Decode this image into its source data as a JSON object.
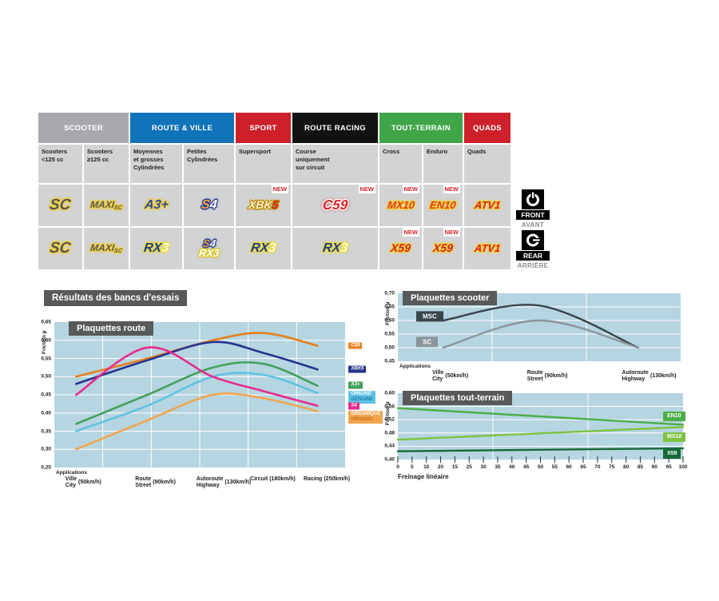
{
  "results_title": "Résultats des bancs d'essais",
  "position_labels": {
    "front": {
      "en": "FRONT",
      "fr": "AVANT"
    },
    "rear": {
      "en": "REAR",
      "fr": "ARRIÈRE"
    }
  },
  "table": {
    "new_badge": "NEW",
    "groups": [
      {
        "label": "SCOOTER",
        "span": 2,
        "color": "#A7A9AC"
      },
      {
        "label": "ROUTE & VILLE",
        "span": 2,
        "color": "#1173B9"
      },
      {
        "label": "SPORT",
        "span": 1,
        "color": "#CE202B"
      },
      {
        "label": "ROUTE RACING",
        "span": 1,
        "color": "#121212"
      },
      {
        "label": "TOUT-TERRAIN",
        "span": 2,
        "color": "#3FA548"
      },
      {
        "label": "QUADS",
        "span": 1,
        "color": "#CE202B"
      }
    ],
    "subheaders": [
      "Scooters\n<125 cc",
      "Scooters\n≥125 cc",
      "Moyennes\net grosses\nCylindrées",
      "Petites\nCylindrées",
      "Supersport",
      "Course\nuniquement\nsur circuit",
      "Cross",
      "Enduro",
      "Quads"
    ],
    "products": {
      "SC": {
        "size": 19,
        "outline": "#F0D03C",
        "glow": "rgba(240,208,60,0.9)",
        "parts": [
          {
            "t": "SC",
            "c": "#55565A"
          }
        ]
      },
      "MAXISC": {
        "size": 12,
        "outline": "#F0D03C",
        "glow": "rgba(240,208,60,0.9)",
        "parts": [
          {
            "t": "MAXI",
            "c": "#55565A"
          },
          {
            "t": "SC",
            "c": "#55565A",
            "small": true
          }
        ]
      },
      "A3PLUS": {
        "size": 16,
        "outline": "#F0D03C",
        "glow": "rgba(240,208,60,0.9)",
        "parts": [
          {
            "t": "A3+",
            "c": "#2E4D9C"
          }
        ]
      },
      "S4": {
        "size": 16,
        "outline": "#2B3990",
        "glow": "rgba(120,140,200,0.6)",
        "parts": [
          {
            "t": "S",
            "c": "#F2A933"
          },
          {
            "t": "4",
            "c": "#FFFFFF"
          }
        ]
      },
      "S4S": {
        "size": 13,
        "outline": "#2B3990",
        "glow": "rgba(120,140,200,0.6)",
        "parts": [
          {
            "t": "S",
            "c": "#F2A933"
          },
          {
            "t": "4",
            "c": "#FFFFFF"
          }
        ]
      },
      "XBK5": {
        "size": 14,
        "outline": "#B8860B",
        "glow": "rgba(244,214,84,0.9)",
        "parts": [
          {
            "t": "XBK",
            "c": "#FCF3CF"
          },
          {
            "t": "5",
            "c": "#D81F26"
          }
        ]
      },
      "C59": {
        "size": 17,
        "outline": "#FFFFFF",
        "glow": "rgba(216,31,38,0.85)",
        "parts": [
          {
            "t": "C59",
            "c": "#D81F26"
          }
        ]
      },
      "MX10": {
        "size": 13,
        "outline": "#F0D03C",
        "glow": "rgba(240,208,60,0.8)",
        "parts": [
          {
            "t": "MX10",
            "c": "#E03A25"
          }
        ]
      },
      "EN10": {
        "size": 13,
        "outline": "#F0D03C",
        "glow": "rgba(240,208,60,0.8)",
        "parts": [
          {
            "t": "EN10",
            "c": "#E03A25"
          }
        ]
      },
      "ATV1": {
        "size": 13,
        "outline": "#F0D03C",
        "glow": "rgba(240,208,60,0.8)",
        "parts": [
          {
            "t": "ATV1",
            "c": "#D81F26"
          }
        ]
      },
      "RX3": {
        "size": 16,
        "outline": "#E8DC3E",
        "glow": "rgba(232,220,62,0.8)",
        "parts": [
          {
            "t": "RX",
            "c": "#1E3C8C"
          },
          {
            "t": "3",
            "c": "#FDFBE8"
          }
        ]
      },
      "RX3W": {
        "size": 13,
        "outline": "#D9CB30",
        "glow": "rgba(217,203,48,0.8)",
        "parts": [
          {
            "t": "RX3",
            "c": "#FFFFFF"
          }
        ]
      },
      "X59": {
        "size": 14,
        "outline": "#F0D03C",
        "glow": "rgba(240,208,60,0.8)",
        "parts": [
          {
            "t": "X59",
            "c": "#D81F26"
          }
        ]
      }
    },
    "rows": {
      "front": [
        {
          "logos": [
            "SC"
          ]
        },
        {
          "logos": [
            "MAXISC"
          ]
        },
        {
          "logos": [
            "A3PLUS"
          ]
        },
        {
          "logos": [
            "S4"
          ]
        },
        {
          "logos": [
            "XBK5"
          ],
          "new": true
        },
        {
          "logos": [
            "C59"
          ],
          "new": true
        },
        {
          "logos": [
            "MX10"
          ],
          "new": true
        },
        {
          "logos": [
            "EN10"
          ],
          "new": true
        },
        {
          "logos": [
            "ATV1"
          ]
        }
      ],
      "rear": [
        {
          "logos": [
            "SC"
          ]
        },
        {
          "logos": [
            "MAXISC"
          ]
        },
        {
          "logos": [
            "RX3"
          ]
        },
        {
          "logos": [
            "S4S",
            "RX3W"
          ]
        },
        {
          "logos": [
            "RX3"
          ]
        },
        {
          "logos": [
            "RX3"
          ]
        },
        {
          "logos": [
            "X59"
          ],
          "new": true
        },
        {
          "logos": [
            "X59"
          ],
          "new": true
        },
        {
          "logos": [
            "ATV1"
          ]
        }
      ]
    }
  },
  "chart_data": [
    {
      "id": "route",
      "type": "line",
      "title": "Plaquettes route",
      "ylabel": "Friction µ",
      "plot_bg": "#B5D5E0",
      "ylim": [
        0.25,
        0.65
      ],
      "yticks": [
        "0,65",
        "0,60",
        "0,55",
        "0,50",
        "0,45",
        "0,40",
        "0,35",
        "0,30",
        "0,25"
      ],
      "x_caption": "Applications",
      "xf": [
        0.075,
        0.32,
        0.545,
        0.72,
        0.905
      ],
      "stops": [
        {
          "fr": "Ville",
          "en": "City",
          "speed": "(50km/h)",
          "xf": 0.075
        },
        {
          "fr": "Route",
          "en": "Street",
          "speed": "(90km/h)",
          "xf": 0.32
        },
        {
          "fr": "Autoroute",
          "en": "Highway",
          "speed": "(130km/h)",
          "xf": 0.545
        },
        {
          "fr": "Circuit",
          "en": "",
          "speed": "(180km/h)",
          "xf": 0.72
        },
        {
          "fr": "Racing",
          "en": "",
          "speed": "(250km/h)",
          "xf": 0.905
        }
      ],
      "series": [
        {
          "name": "C59",
          "color": "#E5801F",
          "values": [
            0.5,
            0.55,
            0.6,
            0.62,
            0.585
          ],
          "legend": {
            "xf": 1.012,
            "v": 0.585
          }
        },
        {
          "name": "XBK5",
          "color": "#26338F",
          "values": [
            0.48,
            0.545,
            0.595,
            0.565,
            0.52
          ],
          "legend": {
            "xf": 1.012,
            "v": 0.52
          }
        },
        {
          "name": "A3+",
          "color": "#43A05B",
          "values": [
            0.37,
            0.45,
            0.525,
            0.535,
            0.475
          ],
          "legend": {
            "xf": 1.012,
            "v": 0.477
          }
        },
        {
          "name": "ORIGINE|GENUINE",
          "color": "#5FC2E3",
          "line2_color": "#1A7FAE",
          "values": [
            0.35,
            0.42,
            0.5,
            0.505,
            0.455
          ],
          "legend": {
            "xf": 1.012,
            "v": 0.444
          }
        },
        {
          "name": "S4",
          "color": "#E92A8E",
          "values": [
            0.45,
            0.58,
            0.5,
            0.46,
            0.42
          ],
          "legend": {
            "xf": 1.012,
            "v": 0.419
          }
        },
        {
          "name": "ORGANIQUE|ORGANIC",
          "color": "#F2A44E",
          "line2_color": "#C4731B",
          "values": [
            0.3,
            0.38,
            0.45,
            0.44,
            0.405
          ],
          "legend": {
            "xf": 1.012,
            "v": 0.388
          }
        }
      ]
    },
    {
      "id": "scooter",
      "type": "line",
      "title": "Plaquettes scooter",
      "ylabel": "Friction µ",
      "plot_bg": "#B5D5E0",
      "ylim": [
        0.45,
        0.7
      ],
      "yticks": [
        "0,70",
        "0,65",
        "0,60",
        "0,55",
        "0,50",
        "0,45"
      ],
      "x_caption": "Applications",
      "xf": [
        0.16,
        0.5,
        0.85
      ],
      "stops": [
        {
          "fr": "Ville",
          "en": "City",
          "speed": "(50km/h)",
          "xf": 0.16
        },
        {
          "fr": "Route",
          "en": "Street",
          "speed": "(90km/h)",
          "xf": 0.5
        },
        {
          "fr": "Autoroute",
          "en": "Highway",
          "speed": "(130km/h)",
          "xf": 0.85
        }
      ],
      "series": [
        {
          "name": "MSC",
          "color": "#39444C",
          "values": [
            0.6,
            0.655,
            0.5
          ],
          "legend": {
            "xf": 0.065,
            "v": 0.615
          }
        },
        {
          "name": "SC",
          "color": "#8A959C",
          "values": [
            0.5,
            0.6,
            0.5
          ],
          "legend": {
            "xf": 0.065,
            "v": 0.52
          }
        }
      ]
    },
    {
      "id": "offroad",
      "type": "line",
      "title": "Plaquettes tout-terrain",
      "ylabel": "Friction µ",
      "plot_bg": "#B5D5E0",
      "ylim": [
        0.4,
        0.6
      ],
      "yticks": [
        "0,60",
        "0,56",
        "0,52",
        "0,48",
        "0,44",
        "0,40"
      ],
      "xticks": [
        "0",
        "5",
        "10",
        "20",
        "15",
        "25",
        "30",
        "35",
        "40",
        "45",
        "50",
        "55",
        "60",
        "65",
        "70",
        "75",
        "80",
        "85",
        "90",
        "95",
        "100"
      ],
      "xlabel": "Freinage linéaire",
      "xf": [
        0,
        1
      ],
      "series": [
        {
          "name": "EN10",
          "color": "#4CAE47",
          "values": [
            0.555,
            0.505
          ],
          "legend": {
            "xf": 0.93,
            "v": 0.53
          }
        },
        {
          "name": "MX10",
          "color": "#7DC242",
          "values": [
            0.46,
            0.498
          ],
          "legend": {
            "xf": 0.93,
            "v": 0.468
          }
        },
        {
          "name": "X59",
          "color": "#156A38",
          "values": [
            0.425,
            0.434
          ],
          "legend": {
            "xf": 0.93,
            "v": 0.416
          }
        }
      ]
    }
  ]
}
